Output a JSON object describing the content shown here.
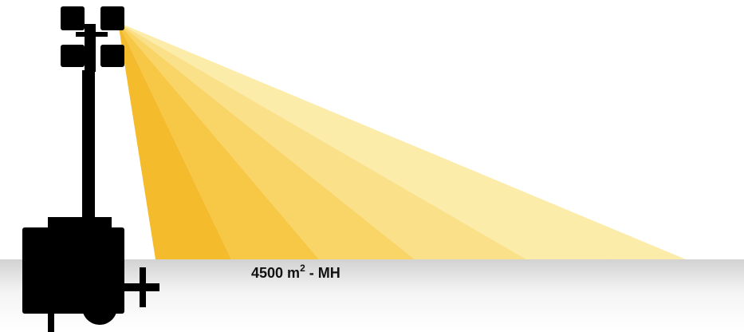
{
  "label": {
    "area": "4500 m",
    "exponent": "2",
    "suffix": " - MH"
  }
}
